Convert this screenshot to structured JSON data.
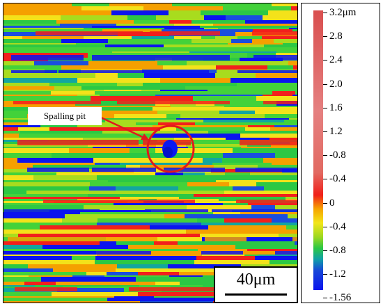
{
  "annotation": {
    "label": "Spalling pit"
  },
  "scale_bar": {
    "label": "40μm"
  },
  "colorbar": {
    "labels": [
      "3.2μm",
      "2.8",
      "2.4",
      "2.0",
      "1.6",
      "1.2",
      "-0.8",
      "-0.4",
      "0",
      "-0.4",
      "-0.8",
      "-1.2",
      "-1.56"
    ]
  },
  "colors": {
    "low": "#0b14ee",
    "mid": "#43d23a",
    "high": "#f0201a",
    "annotation": "#e0181e"
  }
}
